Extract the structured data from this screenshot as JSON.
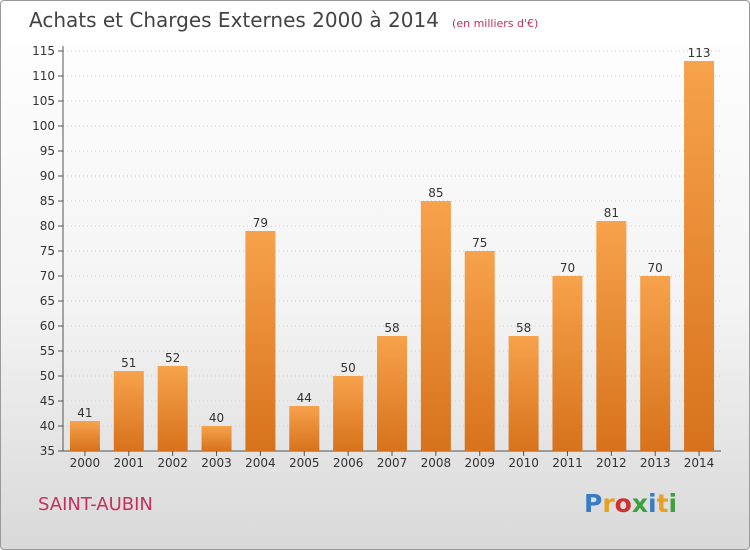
{
  "header": {
    "title": "Achats et Charges Externes 2000 à 2014",
    "subtitle": "(en milliers d'€)"
  },
  "footer": {
    "place": "SAINT-AUBIN",
    "logo_letters": [
      {
        "char": "P",
        "color": "#3a7bc8"
      },
      {
        "char": "r",
        "color": "#e8a020"
      },
      {
        "char": "o",
        "color": "#d03030"
      },
      {
        "char": "x",
        "color": "#40a040"
      },
      {
        "char": "i",
        "color": "#3a7bc8"
      },
      {
        "char": "t",
        "color": "#e8a020"
      },
      {
        "char": "i",
        "color": "#40a040"
      }
    ]
  },
  "colors": {
    "bar_light": "#f7a24c",
    "bar_dark": "#d8721c",
    "axis": "#555555",
    "grid": "#cfcfcf"
  },
  "chart_data": {
    "type": "bar",
    "title": "Achats et Charges Externes 2000 à 2014",
    "subtitle": "(en milliers d'€)",
    "categories": [
      "2000",
      "2001",
      "2002",
      "2003",
      "2004",
      "2005",
      "2006",
      "2007",
      "2008",
      "2009",
      "2010",
      "2011",
      "2012",
      "2013",
      "2014"
    ],
    "values": [
      41,
      51,
      52,
      40,
      79,
      44,
      50,
      58,
      85,
      75,
      58,
      70,
      81,
      70,
      113
    ],
    "ylim": [
      35,
      115
    ],
    "yticks": [
      35,
      40,
      45,
      50,
      55,
      60,
      65,
      70,
      75,
      80,
      85,
      90,
      95,
      100,
      105,
      110,
      115
    ],
    "grid": "horizontal-dotted",
    "xlabel": "",
    "ylabel": ""
  }
}
